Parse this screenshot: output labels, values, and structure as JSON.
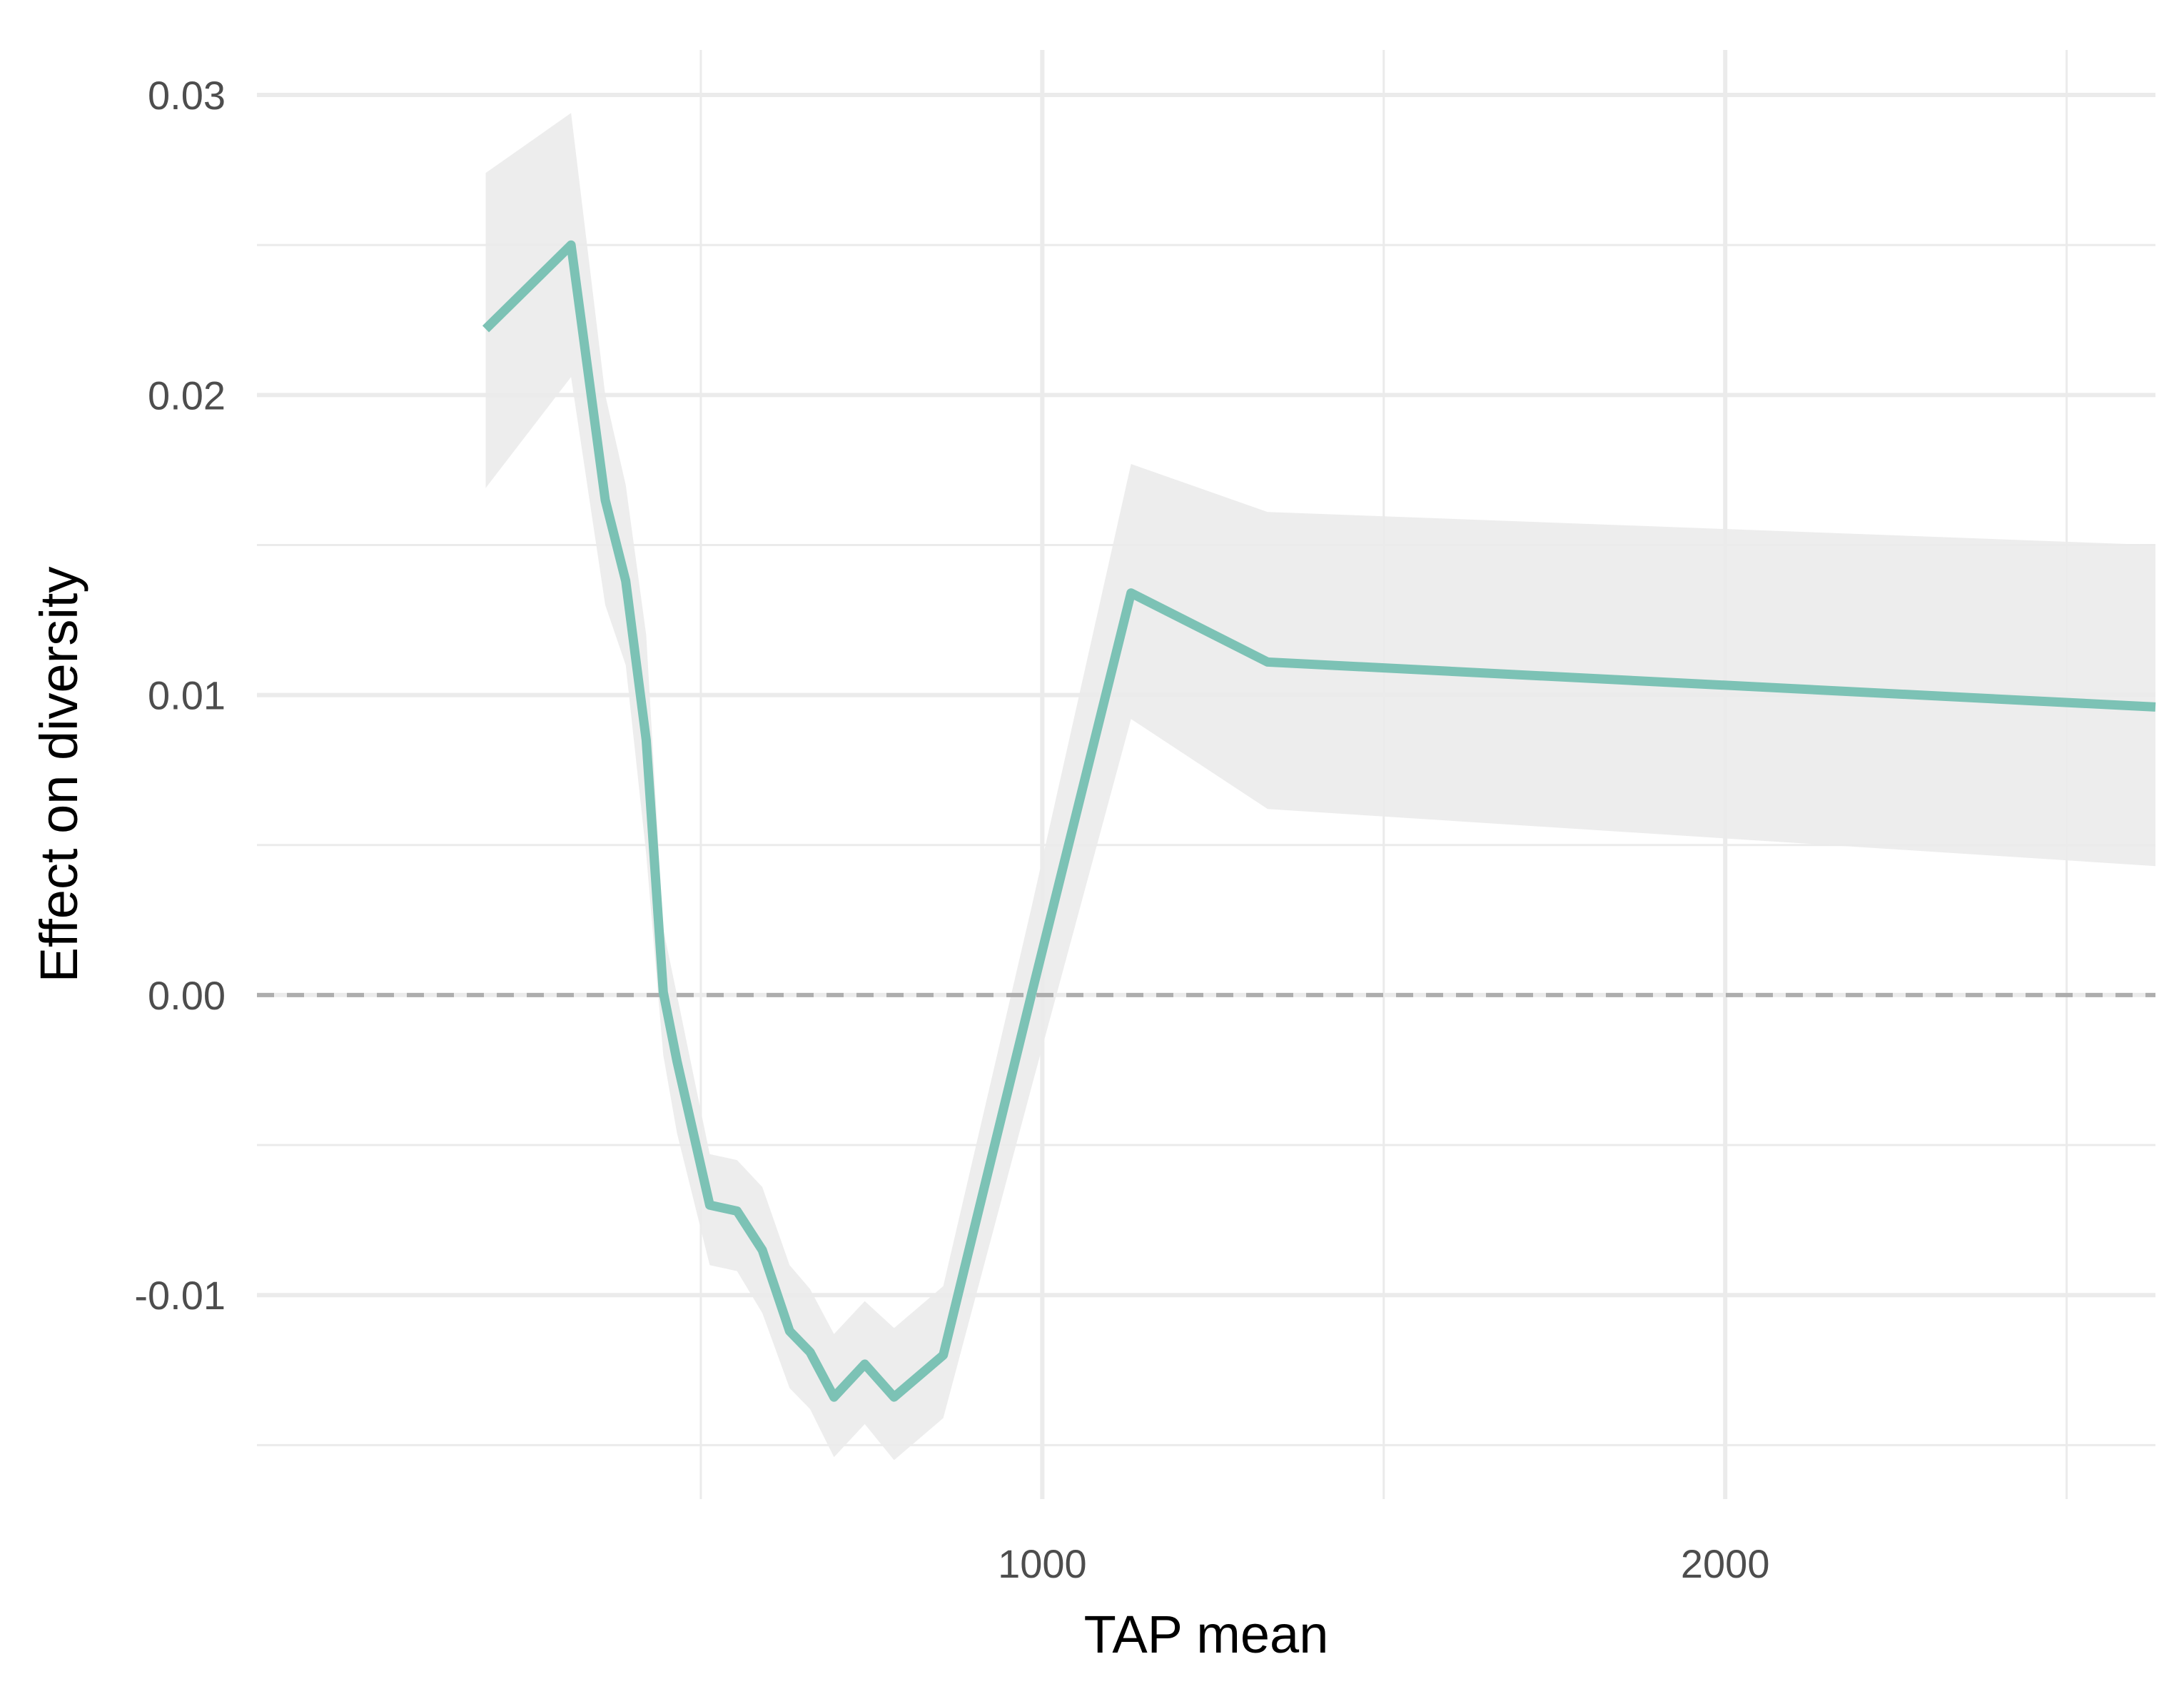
{
  "chart_data": {
    "type": "line",
    "title": "",
    "xlabel": "TAP mean",
    "ylabel": "Effect on diversity",
    "xlim": [
      -150,
      2630
    ],
    "ylim": [
      -0.0168,
      0.0315
    ],
    "x_ticks": [
      1000,
      2000
    ],
    "x_tick_labels": [
      "1000",
      "2000"
    ],
    "x_minor_ticks": [
      500,
      1500,
      2500
    ],
    "y_ticks": [
      -0.01,
      0.0,
      0.01,
      0.02,
      0.03
    ],
    "y_tick_labels": [
      "-0.01",
      "0.00",
      "0.01",
      "0.02",
      "0.03"
    ],
    "y_minor_ticks": [
      -0.015,
      -0.005,
      0.005,
      0.015,
      0.025
    ],
    "grid": true,
    "reference_line": {
      "y": 0.0,
      "style": "dashed",
      "color": "#adadad"
    },
    "colors": {
      "line": "#7cc2b5",
      "ribbon": "#ebebeb",
      "grid": "#ebebeb"
    },
    "series": [
      {
        "x": [
          185,
          310,
          360,
          390,
          420,
          445,
          465,
          513,
          553,
          590,
          630,
          660,
          695,
          740,
          783,
          855,
          985,
          1130,
          1330,
          2630
        ],
        "y": [
          0.0222,
          0.025,
          0.0165,
          0.0138,
          0.0085,
          0.0001,
          -0.0022,
          -0.007,
          -0.0072,
          -0.0085,
          -0.0112,
          -0.0119,
          -0.0134,
          -0.0123,
          -0.0134,
          -0.012,
          0.0001,
          0.0134,
          0.0111,
          0.0096
        ],
        "lower": [
          0.0169,
          0.0206,
          0.013,
          0.011,
          0.0047,
          -0.002,
          -0.0046,
          -0.009,
          -0.0092,
          -0.0106,
          -0.0131,
          -0.0138,
          -0.0154,
          -0.0143,
          -0.0155,
          -0.0141,
          -0.003,
          0.0092,
          0.0062,
          0.0043
        ],
        "upper": [
          0.0274,
          0.0294,
          0.02,
          0.017,
          0.012,
          0.0022,
          0.0,
          -0.0053,
          -0.0055,
          -0.0064,
          -0.009,
          -0.0098,
          -0.0113,
          -0.0102,
          -0.0111,
          -0.0097,
          0.003,
          0.0177,
          0.0161,
          0.015
        ]
      }
    ]
  }
}
